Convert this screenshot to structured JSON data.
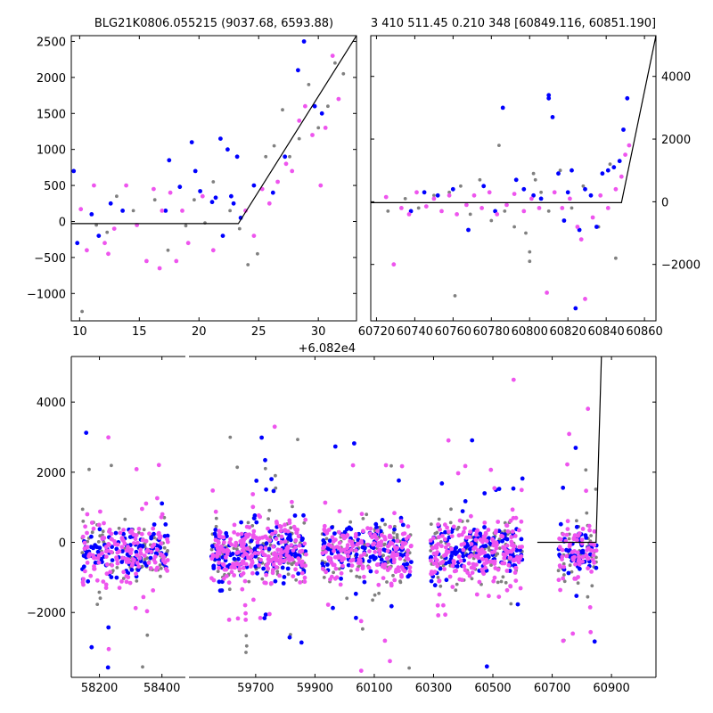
{
  "figure": {
    "top_left_title": "BLG21K0806.055215 (9037.68, 6593.88)",
    "top_right_title": "3 410 511.45 0.210 348 [60849.116, 60851.190]",
    "offset_text": "+6.082e4"
  },
  "colors": {
    "background": "#ffffff",
    "axis": "#000000",
    "series_gray": "#808080",
    "series_blue": "#0000ff",
    "series_magenta": "#ee55ee",
    "model_line": "#000000"
  },
  "chart_data": [
    {
      "id": "top-left",
      "type": "scatter",
      "title": "BLG21K0806.055215 (9037.68, 6593.88)",
      "xlim": [
        9.3,
        33.2
      ],
      "ylim": [
        -1380,
        2580
      ],
      "xticks": [
        10,
        15,
        20,
        25,
        30
      ],
      "yticks": [
        -1000,
        -500,
        0,
        500,
        1000,
        1500,
        2000,
        2500
      ],
      "xtick_labels": [
        "10",
        "15",
        "20",
        "25",
        "30"
      ],
      "ytick_labels": [
        "−1000",
        "−500",
        "0",
        "500",
        "1000",
        "1500",
        "2000",
        "2500"
      ],
      "ytick_side": "left",
      "x_offset": "+6.082e4",
      "model": {
        "x": [
          9.3,
          23.3,
          33.2
        ],
        "y": [
          -30,
          -30,
          2580
        ]
      },
      "series": [
        {
          "color": "#808080",
          "points": [
            [
              10.2,
              -1250
            ],
            [
              11.4,
              -50
            ],
            [
              12.3,
              -150
            ],
            [
              13.1,
              350
            ],
            [
              14.5,
              150
            ],
            [
              16.3,
              300
            ],
            [
              17.4,
              -400
            ],
            [
              18.9,
              -60
            ],
            [
              20.5,
              -20
            ],
            [
              22.6,
              150
            ],
            [
              23.4,
              -100
            ],
            [
              24.1,
              -600
            ],
            [
              24.9,
              -450
            ],
            [
              25.6,
              900
            ],
            [
              26.3,
              1050
            ],
            [
              27.0,
              1550
            ],
            [
              27.6,
              900
            ],
            [
              28.4,
              1150
            ],
            [
              29.2,
              1900
            ],
            [
              30.0,
              1300
            ],
            [
              30.8,
              1600
            ],
            [
              31.4,
              2200
            ],
            [
              32.1,
              2050
            ],
            [
              21.2,
              550
            ],
            [
              19.6,
              300
            ]
          ]
        },
        {
          "color": "#0000ff",
          "points": [
            [
              9.5,
              700
            ],
            [
              9.8,
              -300
            ],
            [
              11.0,
              100
            ],
            [
              11.6,
              -200
            ],
            [
              12.6,
              250
            ],
            [
              13.6,
              150
            ],
            [
              17.2,
              150
            ],
            [
              17.5,
              850
            ],
            [
              18.4,
              480
            ],
            [
              19.4,
              1100
            ],
            [
              19.7,
              700
            ],
            [
              20.1,
              420
            ],
            [
              21.1,
              270
            ],
            [
              21.4,
              330
            ],
            [
              21.8,
              1150
            ],
            [
              22.0,
              -200
            ],
            [
              22.4,
              1000
            ],
            [
              22.9,
              250
            ],
            [
              23.2,
              900
            ],
            [
              23.5,
              50
            ],
            [
              26.2,
              400
            ],
            [
              27.2,
              900
            ],
            [
              28.3,
              2100
            ],
            [
              28.8,
              2500
            ],
            [
              29.7,
              1600
            ],
            [
              30.3,
              1500
            ],
            [
              24.6,
              500
            ],
            [
              22.7,
              350
            ]
          ]
        },
        {
          "color": "#ee55ee",
          "points": [
            [
              10.1,
              170
            ],
            [
              10.6,
              -400
            ],
            [
              11.2,
              500
            ],
            [
              12.1,
              -300
            ],
            [
              12.9,
              -100
            ],
            [
              13.9,
              500
            ],
            [
              14.8,
              -50
            ],
            [
              15.6,
              -550
            ],
            [
              16.2,
              450
            ],
            [
              16.7,
              -650
            ],
            [
              17.6,
              400
            ],
            [
              18.1,
              -550
            ],
            [
              18.6,
              150
            ],
            [
              19.1,
              -300
            ],
            [
              20.3,
              350
            ],
            [
              21.2,
              -400
            ],
            [
              23.9,
              150
            ],
            [
              24.6,
              -200
            ],
            [
              25.3,
              450
            ],
            [
              25.9,
              250
            ],
            [
              26.6,
              550
            ],
            [
              27.3,
              800
            ],
            [
              27.8,
              700
            ],
            [
              28.4,
              1400
            ],
            [
              28.9,
              1600
            ],
            [
              29.5,
              1200
            ],
            [
              30.2,
              500
            ],
            [
              30.6,
              1300
            ],
            [
              31.2,
              2300
            ],
            [
              31.7,
              1700
            ],
            [
              16.9,
              150
            ],
            [
              12.4,
              -450
            ]
          ]
        }
      ]
    },
    {
      "id": "top-right",
      "type": "scatter",
      "title": "3 410 511.45 0.210 348 [60849.116, 60851.190]",
      "xlim": [
        60717,
        60866
      ],
      "ylim": [
        -3800,
        5300
      ],
      "xticks": [
        60720,
        60740,
        60760,
        60780,
        60800,
        60820,
        60840,
        60860
      ],
      "yticks": [
        -2000,
        0,
        2000,
        4000
      ],
      "xtick_labels": [
        "60720",
        "60740",
        "60760",
        "60780",
        "60800",
        "60820",
        "60840",
        "60860"
      ],
      "ytick_labels": [
        "−2000",
        "0",
        "2000",
        "4000"
      ],
      "ytick_side": "right",
      "model": {
        "x": [
          60717,
          60848,
          60866
        ],
        "y": [
          -30,
          -30,
          5300
        ]
      },
      "series": [
        {
          "color": "#808080",
          "points": [
            [
              60726,
              -300
            ],
            [
              60735,
              100
            ],
            [
              60742,
              -200
            ],
            [
              60750,
              200
            ],
            [
              60758,
              300
            ],
            [
              60764,
              500
            ],
            [
              60769,
              -400
            ],
            [
              60774,
              700
            ],
            [
              60780,
              -600
            ],
            [
              60784,
              1800
            ],
            [
              60787,
              -300
            ],
            [
              60792,
              -800
            ],
            [
              60798,
              -1000
            ],
            [
              60800,
              -1600
            ],
            [
              60800,
              -1900
            ],
            [
              60802,
              900
            ],
            [
              60806,
              300
            ],
            [
              60810,
              -300
            ],
            [
              60816,
              1000
            ],
            [
              60822,
              -200
            ],
            [
              60828,
              500
            ],
            [
              60836,
              -800
            ],
            [
              60842,
              1200
            ],
            [
              60845,
              -1800
            ],
            [
              60761,
              -3000
            ],
            [
              60803,
              700
            ]
          ]
        },
        {
          "color": "#0000ff",
          "points": [
            [
              60738,
              -300
            ],
            [
              60745,
              300
            ],
            [
              60752,
              200
            ],
            [
              60760,
              400
            ],
            [
              60768,
              -900
            ],
            [
              60776,
              500
            ],
            [
              60782,
              -300
            ],
            [
              60786,
              3000
            ],
            [
              60793,
              700
            ],
            [
              60797,
              400
            ],
            [
              60802,
              200
            ],
            [
              60806,
              100
            ],
            [
              60810,
              3300
            ],
            [
              60810,
              3400
            ],
            [
              60812,
              2700
            ],
            [
              60815,
              900
            ],
            [
              60818,
              -600
            ],
            [
              60820,
              300
            ],
            [
              60824,
              -3400
            ],
            [
              60826,
              -900
            ],
            [
              60829,
              400
            ],
            [
              60832,
              200
            ],
            [
              60835,
              -800
            ],
            [
              60838,
              900
            ],
            [
              60841,
              1000
            ],
            [
              60844,
              1100
            ],
            [
              60847,
              1300
            ],
            [
              60849,
              2300
            ],
            [
              60851,
              3300
            ],
            [
              60822,
              1000
            ]
          ]
        },
        {
          "color": "#ee55ee",
          "points": [
            [
              60725,
              150
            ],
            [
              60729,
              -2000
            ],
            [
              60733,
              -200
            ],
            [
              60737,
              -400
            ],
            [
              60741,
              300
            ],
            [
              60746,
              -150
            ],
            [
              60750,
              100
            ],
            [
              60754,
              -300
            ],
            [
              60758,
              200
            ],
            [
              60762,
              -400
            ],
            [
              60767,
              -100
            ],
            [
              60771,
              200
            ],
            [
              60775,
              -200
            ],
            [
              60779,
              300
            ],
            [
              60783,
              -400
            ],
            [
              60788,
              -100
            ],
            [
              60792,
              250
            ],
            [
              60797,
              -300
            ],
            [
              60801,
              100
            ],
            [
              60805,
              -200
            ],
            [
              60809,
              -2900
            ],
            [
              60813,
              300
            ],
            [
              60817,
              -200
            ],
            [
              60821,
              100
            ],
            [
              60825,
              -800
            ],
            [
              60827,
              -1200
            ],
            [
              60829,
              -3100
            ],
            [
              60833,
              -500
            ],
            [
              60837,
              200
            ],
            [
              60841,
              -200
            ],
            [
              60845,
              400
            ],
            [
              60848,
              800
            ],
            [
              60850,
              1500
            ],
            [
              60852,
              1800
            ]
          ]
        }
      ]
    },
    {
      "id": "bottom",
      "type": "scatter",
      "xlim": [
        58110,
        61050
      ],
      "ylim": [
        -3850,
        5300
      ],
      "xticks": [
        58200,
        58400,
        59700,
        59900,
        60100,
        60300,
        60500,
        60700,
        60900
      ],
      "yticks": [
        -2000,
        0,
        2000,
        4000
      ],
      "xtick_labels": [
        "58200",
        "58400",
        "59700",
        "59900",
        "60100",
        "60300",
        "60500",
        "60700",
        "60900"
      ],
      "ytick_labels": [
        "−2000",
        "0",
        "2000",
        "4000"
      ],
      "ytick_side": "left",
      "x_break": {
        "left_end": 58475,
        "right_start": 59475
      },
      "seasons": [
        [
          58145,
          58420
        ],
        [
          59550,
          59870
        ],
        [
          59925,
          60225
        ],
        [
          60290,
          60600
        ],
        [
          60720,
          60850
        ]
      ],
      "model": {
        "x": [
          60650,
          60848,
          60866
        ],
        "y": [
          0,
          0,
          5300
        ]
      },
      "series": [
        {
          "color": "#808080",
          "share": 0.25
        },
        {
          "color": "#0000ff",
          "share": 0.3
        },
        {
          "color": "#ee55ee",
          "share": 0.45
        }
      ]
    }
  ]
}
